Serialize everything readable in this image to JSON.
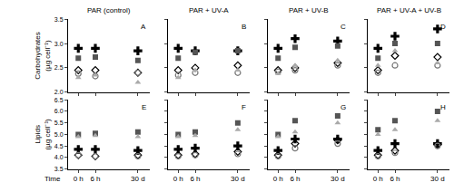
{
  "chart_data": [
    {
      "type": "scatter",
      "title": "PAR (control)",
      "annotations": [
        "A"
      ],
      "ylabel": "Carbohydrates (µg cell⁻¹)",
      "x": [
        0,
        1,
        3.5
      ],
      "xlim": [
        -0.6,
        4.2
      ],
      "xticks": [
        {
          "value": 0,
          "label": "0 h"
        },
        {
          "value": 1,
          "label": "6 h"
        },
        {
          "value": 3.5,
          "label": "30 d"
        }
      ],
      "ylim": [
        2,
        3.5
      ],
      "yticks": [
        {
          "value": 2,
          "label": "2.0"
        },
        2.5,
        {
          "value": 3,
          "label": "3.0"
        },
        3.5
      ],
      "tick_labels": "y",
      "series": [
        {
          "color": "#000000",
          "marker": "cross",
          "values": [
            2.9,
            2.9,
            2.85
          ]
        },
        {
          "color": "#555555",
          "marker": "square",
          "values": [
            2.7,
            2.72,
            2.65
          ]
        },
        {
          "color": "#000000",
          "marker": "diamond-open",
          "values": [
            2.45,
            2.45,
            2.4
          ]
        },
        {
          "color": "#777777",
          "marker": "circle-open",
          "values": [
            2.38,
            2.33,
            2.4
          ]
        },
        {
          "color": "#aaaaaa",
          "marker": "triangle-up",
          "values": [
            2.3,
            2.35,
            2.2
          ]
        }
      ]
    },
    {
      "type": "scatter",
      "title": "PAR + UV-A",
      "annotations": [
        "B"
      ],
      "x": [
        0,
        1,
        3.5
      ],
      "xlim": [
        -0.6,
        4.2
      ],
      "xticks": [
        {
          "value": 0,
          "label": "0 h"
        },
        {
          "value": 1,
          "label": "6 h"
        },
        {
          "value": 3.5,
          "label": "30 d"
        }
      ],
      "ylim": [
        2,
        3.5
      ],
      "yticks": [
        {
          "value": 2,
          "label": "2.0"
        },
        2.5,
        {
          "value": 3,
          "label": "3.0"
        },
        3.5
      ],
      "tick_labels": false,
      "series": [
        {
          "color": "#000000",
          "marker": "cross",
          "values": [
            2.9,
            2.85,
            2.85
          ]
        },
        {
          "color": "#555555",
          "marker": "square",
          "values": [
            2.7,
            2.82,
            2.85
          ]
        },
        {
          "color": "#000000",
          "marker": "diamond-open",
          "values": [
            2.45,
            2.5,
            2.55
          ]
        },
        {
          "color": "#777777",
          "marker": "circle-open",
          "values": [
            2.35,
            2.4,
            2.4
          ]
        },
        {
          "color": "#aaaaaa",
          "marker": "triangle-up",
          "values": [
            2.3,
            2.45,
            2.45
          ]
        }
      ]
    },
    {
      "type": "scatter",
      "title": "PAR + UV-B",
      "annotations": [
        "C"
      ],
      "x": [
        0,
        1,
        3.5
      ],
      "xlim": [
        -0.6,
        4.2
      ],
      "xticks": [
        {
          "value": 0,
          "label": "0 h"
        },
        {
          "value": 1,
          "label": "6 h"
        },
        {
          "value": 3.5,
          "label": "30 d"
        }
      ],
      "ylim": [
        2,
        3.5
      ],
      "yticks": [
        {
          "value": 2,
          "label": "2.0"
        },
        2.5,
        {
          "value": 3,
          "label": "3.0"
        },
        3.5
      ],
      "tick_labels": false,
      "series": [
        {
          "color": "#000000",
          "marker": "cross",
          "values": [
            2.9,
            3.1,
            3.05
          ]
        },
        {
          "color": "#555555",
          "marker": "square",
          "values": [
            2.7,
            2.92,
            2.95
          ]
        },
        {
          "color": "#000000",
          "marker": "diamond-open",
          "values": [
            2.45,
            2.5,
            2.6
          ]
        },
        {
          "color": "#777777",
          "marker": "circle-open",
          "values": [
            2.42,
            2.45,
            2.55
          ]
        },
        {
          "color": "#aaaaaa",
          "marker": "triangle-up",
          "values": [
            2.38,
            2.55,
            2.65
          ]
        }
      ]
    },
    {
      "type": "scatter",
      "title": "PAR + UV-A + UV-B",
      "annotations": [
        "D"
      ],
      "x": [
        0,
        1,
        3.5
      ],
      "xlim": [
        -0.6,
        4.2
      ],
      "xticks": [
        {
          "value": 0,
          "label": "0 h"
        },
        {
          "value": 1,
          "label": "6 h"
        },
        {
          "value": 3.5,
          "label": "30 d"
        }
      ],
      "ylim": [
        2,
        3.5
      ],
      "yticks": [
        {
          "value": 2,
          "label": "2.0"
        },
        2.5,
        {
          "value": 3,
          "label": "3.0"
        },
        3.5
      ],
      "tick_labels": false,
      "series": [
        {
          "color": "#000000",
          "marker": "cross",
          "values": [
            2.9,
            3.15,
            3.3
          ]
        },
        {
          "color": "#555555",
          "marker": "square",
          "values": [
            2.7,
            3.0,
            3.0
          ]
        },
        {
          "color": "#000000",
          "marker": "diamond-open",
          "values": [
            2.45,
            2.75,
            2.72
          ]
        },
        {
          "color": "#777777",
          "marker": "circle-open",
          "values": [
            2.4,
            2.55,
            2.55
          ]
        },
        {
          "color": "#aaaaaa",
          "marker": "triangle-up",
          "values": [
            2.55,
            2.85,
            2.6
          ]
        }
      ]
    },
    {
      "type": "scatter",
      "annotations": [
        "E"
      ],
      "ylabel": "Lipids (µg cell⁻¹)",
      "xlabel": "Time",
      "x": [
        0,
        1,
        3.5
      ],
      "xlim": [
        -0.6,
        4.2
      ],
      "xticks": [
        {
          "value": 0,
          "label": "0 h"
        },
        {
          "value": 1,
          "label": "6 h"
        },
        {
          "value": 3.5,
          "label": "30 d"
        }
      ],
      "ylim": [
        3.5,
        6.5
      ],
      "yticks": [
        3.5,
        {
          "value": 4,
          "label": "4.0"
        },
        4.5,
        {
          "value": 5,
          "label": "5.0"
        },
        5.5,
        {
          "value": 6,
          "label": "6.0"
        },
        6.5
      ],
      "tick_labels": true,
      "series": [
        {
          "color": "#000000",
          "marker": "cross",
          "values": [
            4.35,
            4.35,
            4.3
          ]
        },
        {
          "color": "#555555",
          "marker": "square",
          "values": [
            5.0,
            5.05,
            5.1
          ]
        },
        {
          "color": "#000000",
          "marker": "diamond-open",
          "values": [
            4.1,
            4.05,
            4.1
          ]
        },
        {
          "color": "#777777",
          "marker": "circle-open",
          "values": [
            4.1,
            4.05,
            4.05
          ]
        },
        {
          "color": "#aaaaaa",
          "marker": "triangle-up",
          "values": [
            4.9,
            4.95,
            4.9
          ]
        }
      ]
    },
    {
      "type": "scatter",
      "annotations": [
        "F"
      ],
      "x": [
        0,
        1,
        3.5
      ],
      "xlim": [
        -0.6,
        4.2
      ],
      "xticks": [
        {
          "value": 0,
          "label": "0 h"
        },
        {
          "value": 1,
          "label": "6 h"
        },
        {
          "value": 3.5,
          "label": "30 d"
        }
      ],
      "ylim": [
        3.5,
        6.5
      ],
      "yticks": [
        3.5,
        {
          "value": 4,
          "label": "4.0"
        },
        4.5,
        {
          "value": 5,
          "label": "5.0"
        },
        5.5,
        {
          "value": 6,
          "label": "6.0"
        },
        6.5
      ],
      "tick_labels": "x",
      "series": [
        {
          "color": "#000000",
          "marker": "cross",
          "values": [
            4.35,
            4.4,
            4.5
          ]
        },
        {
          "color": "#555555",
          "marker": "square",
          "values": [
            5.0,
            5.1,
            5.5
          ]
        },
        {
          "color": "#000000",
          "marker": "diamond-open",
          "values": [
            4.1,
            4.15,
            4.25
          ]
        },
        {
          "color": "#777777",
          "marker": "circle-open",
          "values": [
            4.05,
            4.1,
            4.15
          ]
        },
        {
          "color": "#aaaaaa",
          "marker": "triangle-up",
          "values": [
            4.9,
            4.95,
            5.2
          ]
        }
      ]
    },
    {
      "type": "scatter",
      "annotations": [
        "G"
      ],
      "x": [
        0,
        1,
        3.5
      ],
      "xlim": [
        -0.6,
        4.2
      ],
      "xticks": [
        {
          "value": 0,
          "label": "0 h"
        },
        {
          "value": 1,
          "label": "6 h"
        },
        {
          "value": 3.5,
          "label": "30 d"
        }
      ],
      "ylim": [
        3.5,
        6.5
      ],
      "yticks": [
        3.5,
        {
          "value": 4,
          "label": "4.0"
        },
        4.5,
        {
          "value": 5,
          "label": "5.0"
        },
        5.5,
        {
          "value": 6,
          "label": "6.0"
        },
        6.5
      ],
      "tick_labels": "x",
      "series": [
        {
          "color": "#000000",
          "marker": "cross",
          "values": [
            4.3,
            4.8,
            4.8
          ]
        },
        {
          "color": "#555555",
          "marker": "square",
          "values": [
            5.0,
            5.6,
            5.8
          ]
        },
        {
          "color": "#000000",
          "marker": "diamond-open",
          "values": [
            4.1,
            4.6,
            4.75
          ]
        },
        {
          "color": "#777777",
          "marker": "circle-open",
          "values": [
            4.05,
            4.4,
            4.6
          ]
        },
        {
          "color": "#aaaaaa",
          "marker": "triangle-up",
          "values": [
            4.9,
            5.1,
            5.5
          ]
        }
      ]
    },
    {
      "type": "scatter",
      "annotations": [
        "H"
      ],
      "x": [
        0,
        1,
        3.5
      ],
      "xlim": [
        -0.6,
        4.2
      ],
      "xticks": [
        {
          "value": 0,
          "label": "0 h"
        },
        {
          "value": 1,
          "label": "6 h"
        },
        {
          "value": 3.5,
          "label": "30 d"
        }
      ],
      "ylim": [
        3.5,
        6.5
      ],
      "yticks": [
        3.5,
        {
          "value": 4,
          "label": "4.0"
        },
        4.5,
        {
          "value": 5,
          "label": "5.0"
        },
        5.5,
        {
          "value": 6,
          "label": "6.0"
        },
        6.5
      ],
      "tick_labels": "x",
      "series": [
        {
          "color": "#000000",
          "marker": "cross",
          "values": [
            4.3,
            4.6,
            4.6
          ]
        },
        {
          "color": "#555555",
          "marker": "square",
          "values": [
            5.2,
            5.6,
            6.0
          ]
        },
        {
          "color": "#000000",
          "marker": "diamond-open",
          "values": [
            4.1,
            4.3,
            4.55
          ]
        },
        {
          "color": "#777777",
          "marker": "circle-open",
          "values": [
            4.05,
            4.2,
            4.5
          ]
        },
        {
          "color": "#aaaaaa",
          "marker": "triangle-up",
          "values": [
            5.0,
            5.2,
            5.6
          ]
        }
      ]
    }
  ]
}
